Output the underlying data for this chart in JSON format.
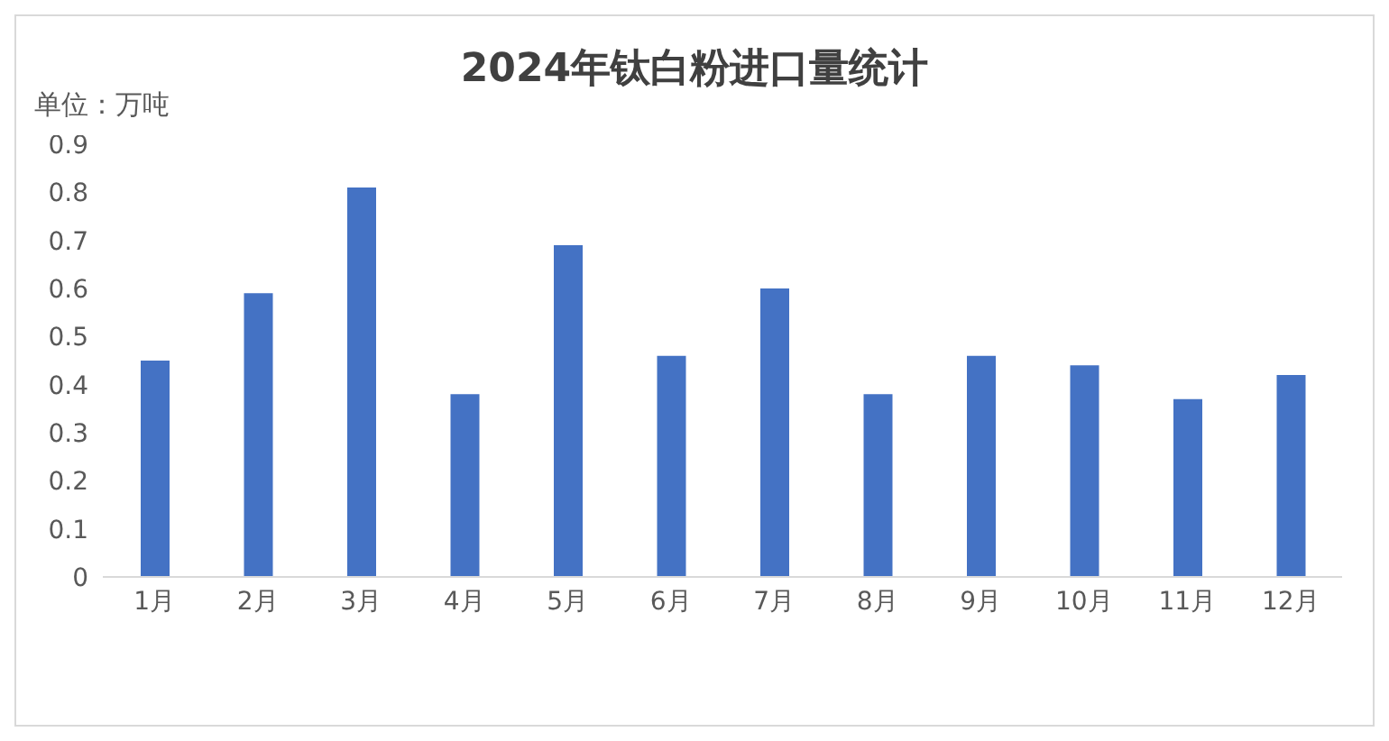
{
  "chart_data": {
    "type": "bar",
    "title": "2024年钛白粉进口量统计",
    "ylabel": "单位：万吨",
    "categories": [
      "1月",
      "2月",
      "3月",
      "4月",
      "5月",
      "6月",
      "7月",
      "8月",
      "9月",
      "10月",
      "11月",
      "12月"
    ],
    "values": [
      0.45,
      0.59,
      0.81,
      0.38,
      0.69,
      0.46,
      0.6,
      0.38,
      0.46,
      0.44,
      0.37,
      0.42
    ],
    "color": "#4472c4",
    "ylim": [
      0,
      0.9
    ],
    "yticks": [
      0,
      0.1,
      0.2,
      0.3,
      0.4,
      0.5,
      0.6,
      0.7,
      0.8,
      0.9
    ],
    "grid": false
  }
}
